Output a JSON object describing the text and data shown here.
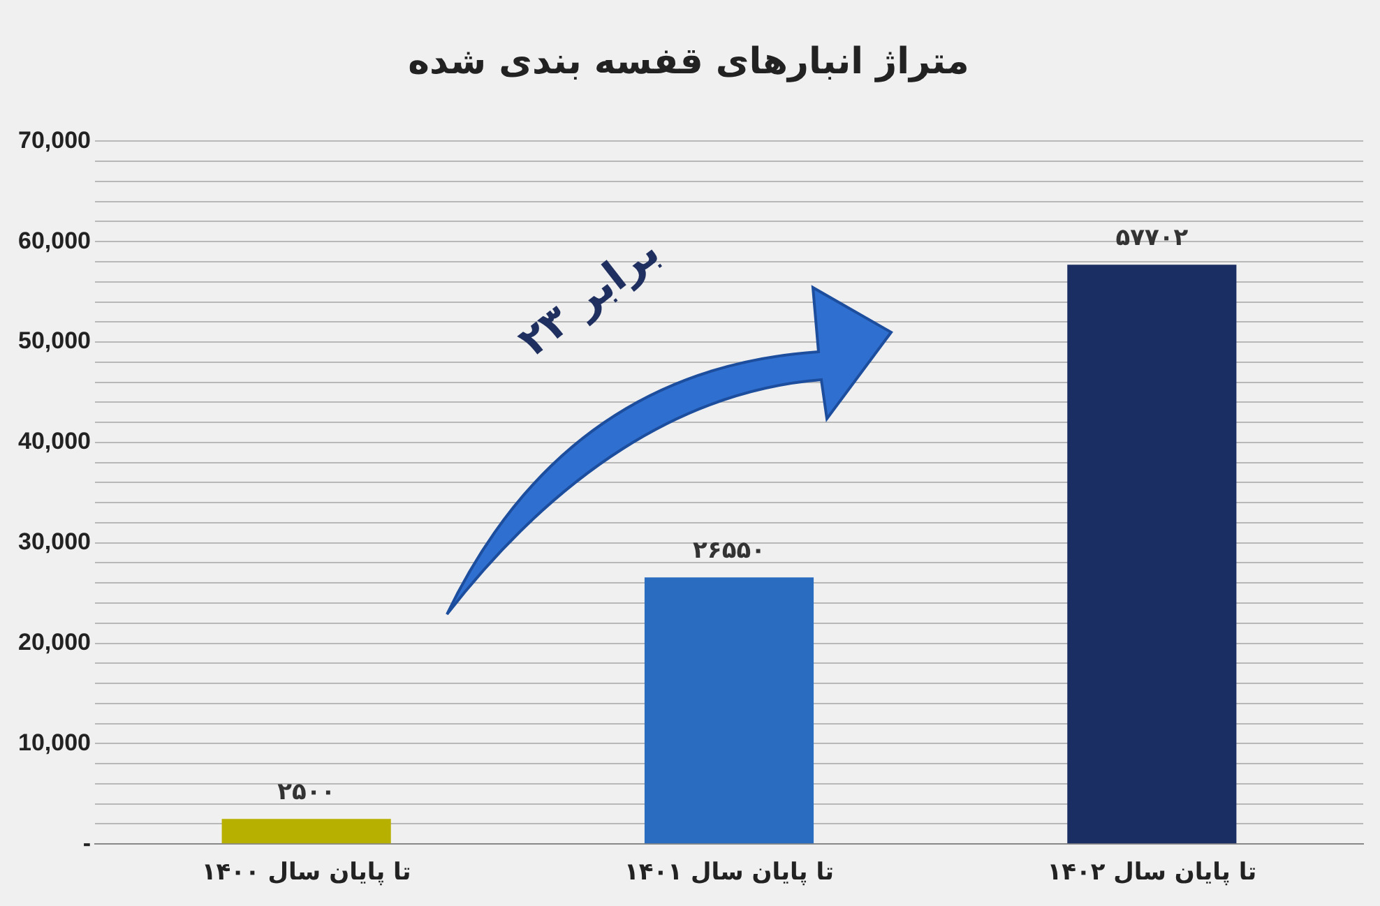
{
  "chart_data": {
    "type": "bar",
    "title": "متراژ انبارهای قفسه بندی شده",
    "categories": [
      "تا پایان سال ۱۴۰۰",
      "تا پایان سال ۱۴۰۱",
      "تا پایان سال ۱۴۰۲"
    ],
    "values": [
      2500,
      26550,
      57702
    ],
    "value_labels": [
      "۲۵۰۰",
      "۲۶۵۵۰",
      "۵۷۷۰۲"
    ],
    "colors": [
      "#b8b000",
      "#2a6cc0",
      "#1b2e63"
    ],
    "ylim": [
      0,
      70000
    ],
    "yticks": [
      {
        "value": 0,
        "label": "-"
      },
      {
        "value": 2000,
        "label": null
      },
      {
        "value": 4000,
        "label": null
      },
      {
        "value": 6000,
        "label": null
      },
      {
        "value": 8000,
        "label": null
      },
      "10,000",
      {
        "value": 12000,
        "label": null
      },
      {
        "value": 14000,
        "label": null
      },
      {
        "value": 16000,
        "label": null
      },
      {
        "value": 18000,
        "label": null
      },
      {
        "value": 20000,
        "label": "20,000"
      },
      {
        "value": 22000,
        "label": null
      },
      {
        "value": 24000,
        "label": null
      },
      {
        "value": 26000,
        "label": null
      },
      {
        "value": 28000,
        "label": null
      },
      {
        "value": 30000,
        "label": "30,000"
      },
      {
        "value": 32000,
        "label": null
      },
      {
        "value": 34000,
        "label": null
      },
      {
        "value": 36000,
        "label": null
      },
      {
        "value": 38000,
        "label": null
      },
      {
        "value": 40000,
        "label": "40,000"
      },
      {
        "value": 42000,
        "label": null
      },
      {
        "value": 44000,
        "label": null
      },
      {
        "value": 46000,
        "label": null
      },
      {
        "value": 48000,
        "label": null
      },
      {
        "value": 50000,
        "label": "50,000"
      },
      {
        "value": 52000,
        "label": null
      },
      {
        "value": 54000,
        "label": null
      },
      {
        "value": 56000,
        "label": null
      },
      {
        "value": 58000,
        "label": null
      },
      {
        "value": 60000,
        "label": "60,000"
      },
      {
        "value": 62000,
        "label": null
      },
      {
        "value": 64000,
        "label": null
      },
      {
        "value": 66000,
        "label": null
      },
      {
        "value": 68000,
        "label": null
      },
      {
        "value": 70000,
        "label": "70,000"
      }
    ],
    "grid": "y",
    "annotations": [
      "۲۳ برابر"
    ]
  }
}
